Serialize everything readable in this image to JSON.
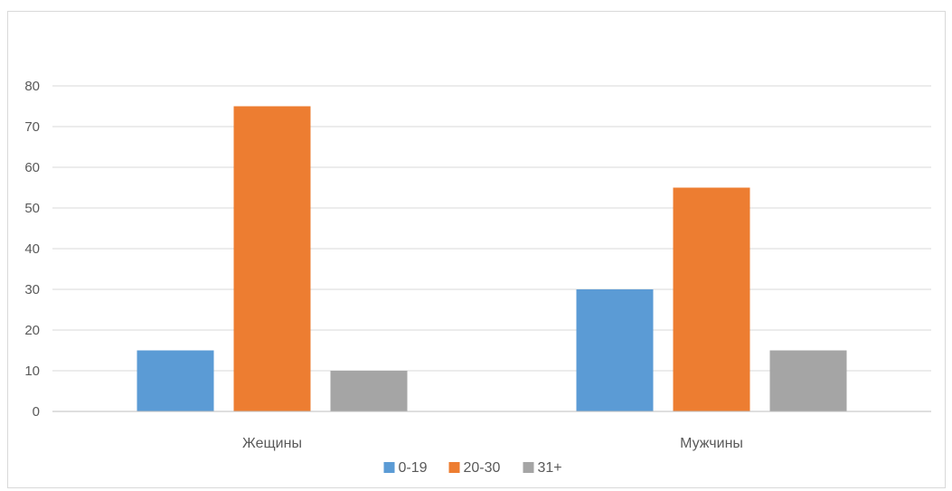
{
  "chart_data": {
    "type": "bar",
    "categories": [
      "Жещины",
      "Мужчины"
    ],
    "series": [
      {
        "name": "0-19",
        "values": [
          15,
          30
        ],
        "color": "#5B9BD5"
      },
      {
        "name": "20-30",
        "values": [
          75,
          55
        ],
        "color": "#ED7D31"
      },
      {
        "name": "31+",
        "values": [
          10,
          15
        ],
        "color": "#A5A5A5"
      }
    ],
    "yticks": [
      0,
      10,
      20,
      30,
      40,
      50,
      60,
      70,
      80
    ],
    "ylim": [
      0,
      80
    ],
    "grid": true,
    "legend_position": "bottom",
    "gridline_color": "#d9d9d9",
    "axis_color": "#bfbfbf",
    "text_color": "#595959"
  }
}
